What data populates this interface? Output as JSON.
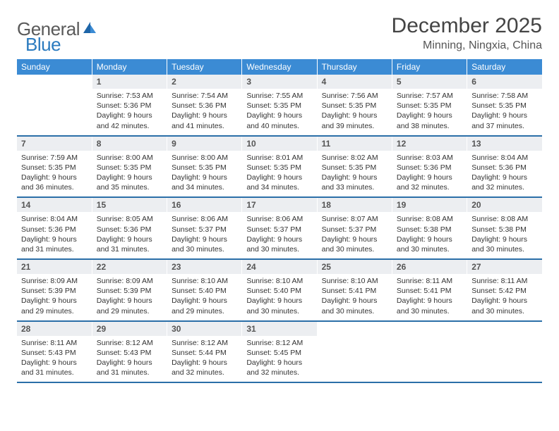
{
  "brand": {
    "part1": "General",
    "part2": "Blue"
  },
  "title": "December 2025",
  "location": "Minning, Ningxia, China",
  "colors": {
    "header_bg": "#3b8bd4",
    "header_text": "#ffffff",
    "daynum_bg": "#eceef1",
    "row_divider": "#2b6fa8",
    "brand_blue": "#2b7bbf",
    "text": "#333333"
  },
  "weekdays": [
    "Sunday",
    "Monday",
    "Tuesday",
    "Wednesday",
    "Thursday",
    "Friday",
    "Saturday"
  ],
  "days": {
    "1": {
      "sunrise": "7:53 AM",
      "sunset": "5:36 PM",
      "daylight": "9 hours and 42 minutes."
    },
    "2": {
      "sunrise": "7:54 AM",
      "sunset": "5:36 PM",
      "daylight": "9 hours and 41 minutes."
    },
    "3": {
      "sunrise": "7:55 AM",
      "sunset": "5:35 PM",
      "daylight": "9 hours and 40 minutes."
    },
    "4": {
      "sunrise": "7:56 AM",
      "sunset": "5:35 PM",
      "daylight": "9 hours and 39 minutes."
    },
    "5": {
      "sunrise": "7:57 AM",
      "sunset": "5:35 PM",
      "daylight": "9 hours and 38 minutes."
    },
    "6": {
      "sunrise": "7:58 AM",
      "sunset": "5:35 PM",
      "daylight": "9 hours and 37 minutes."
    },
    "7": {
      "sunrise": "7:59 AM",
      "sunset": "5:35 PM",
      "daylight": "9 hours and 36 minutes."
    },
    "8": {
      "sunrise": "8:00 AM",
      "sunset": "5:35 PM",
      "daylight": "9 hours and 35 minutes."
    },
    "9": {
      "sunrise": "8:00 AM",
      "sunset": "5:35 PM",
      "daylight": "9 hours and 34 minutes."
    },
    "10": {
      "sunrise": "8:01 AM",
      "sunset": "5:35 PM",
      "daylight": "9 hours and 34 minutes."
    },
    "11": {
      "sunrise": "8:02 AM",
      "sunset": "5:35 PM",
      "daylight": "9 hours and 33 minutes."
    },
    "12": {
      "sunrise": "8:03 AM",
      "sunset": "5:36 PM",
      "daylight": "9 hours and 32 minutes."
    },
    "13": {
      "sunrise": "8:04 AM",
      "sunset": "5:36 PM",
      "daylight": "9 hours and 32 minutes."
    },
    "14": {
      "sunrise": "8:04 AM",
      "sunset": "5:36 PM",
      "daylight": "9 hours and 31 minutes."
    },
    "15": {
      "sunrise": "8:05 AM",
      "sunset": "5:36 PM",
      "daylight": "9 hours and 31 minutes."
    },
    "16": {
      "sunrise": "8:06 AM",
      "sunset": "5:37 PM",
      "daylight": "9 hours and 30 minutes."
    },
    "17": {
      "sunrise": "8:06 AM",
      "sunset": "5:37 PM",
      "daylight": "9 hours and 30 minutes."
    },
    "18": {
      "sunrise": "8:07 AM",
      "sunset": "5:37 PM",
      "daylight": "9 hours and 30 minutes."
    },
    "19": {
      "sunrise": "8:08 AM",
      "sunset": "5:38 PM",
      "daylight": "9 hours and 30 minutes."
    },
    "20": {
      "sunrise": "8:08 AM",
      "sunset": "5:38 PM",
      "daylight": "9 hours and 30 minutes."
    },
    "21": {
      "sunrise": "8:09 AM",
      "sunset": "5:39 PM",
      "daylight": "9 hours and 29 minutes."
    },
    "22": {
      "sunrise": "8:09 AM",
      "sunset": "5:39 PM",
      "daylight": "9 hours and 29 minutes."
    },
    "23": {
      "sunrise": "8:10 AM",
      "sunset": "5:40 PM",
      "daylight": "9 hours and 29 minutes."
    },
    "24": {
      "sunrise": "8:10 AM",
      "sunset": "5:40 PM",
      "daylight": "9 hours and 30 minutes."
    },
    "25": {
      "sunrise": "8:10 AM",
      "sunset": "5:41 PM",
      "daylight": "9 hours and 30 minutes."
    },
    "26": {
      "sunrise": "8:11 AM",
      "sunset": "5:41 PM",
      "daylight": "9 hours and 30 minutes."
    },
    "27": {
      "sunrise": "8:11 AM",
      "sunset": "5:42 PM",
      "daylight": "9 hours and 30 minutes."
    },
    "28": {
      "sunrise": "8:11 AM",
      "sunset": "5:43 PM",
      "daylight": "9 hours and 31 minutes."
    },
    "29": {
      "sunrise": "8:12 AM",
      "sunset": "5:43 PM",
      "daylight": "9 hours and 31 minutes."
    },
    "30": {
      "sunrise": "8:12 AM",
      "sunset": "5:44 PM",
      "daylight": "9 hours and 32 minutes."
    },
    "31": {
      "sunrise": "8:12 AM",
      "sunset": "5:45 PM",
      "daylight": "9 hours and 32 minutes."
    }
  },
  "labels": {
    "sunrise": "Sunrise:",
    "sunset": "Sunset:",
    "daylight": "Daylight:"
  },
  "grid": [
    [
      null,
      1,
      2,
      3,
      4,
      5,
      6
    ],
    [
      7,
      8,
      9,
      10,
      11,
      12,
      13
    ],
    [
      14,
      15,
      16,
      17,
      18,
      19,
      20
    ],
    [
      21,
      22,
      23,
      24,
      25,
      26,
      27
    ],
    [
      28,
      29,
      30,
      31,
      null,
      null,
      null
    ]
  ]
}
